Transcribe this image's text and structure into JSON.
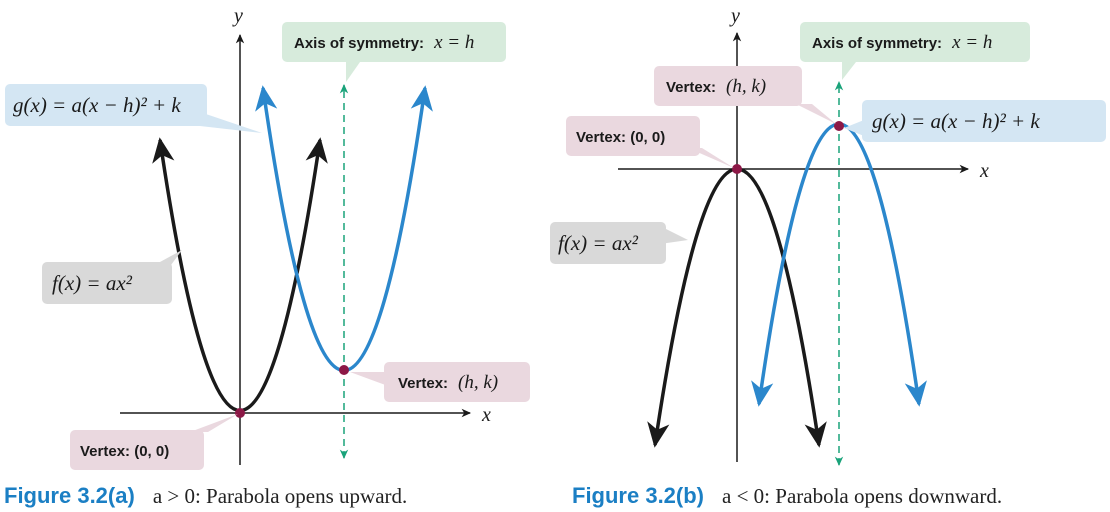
{
  "colors": {
    "blue_curve": "#2b87cc",
    "black_curve": "#1a1a1a",
    "axis_sym": "#1aa37a",
    "vertex_dot": "#8c1846",
    "label_gray": "#d9d9d9",
    "label_blue": "#d4e6f3",
    "label_green": "#d7ebdc",
    "label_pink": "#ead8df",
    "caption_blue": "#1b7fc4"
  },
  "figure_a": {
    "y_axis_label": "y",
    "x_axis_label": "x",
    "axis_of_symmetry": {
      "prefix": "Axis of symmetry:",
      "expr": "x = h"
    },
    "g_label": "g(x) = a(x − h)² + k",
    "f_label": "f(x) = ax²",
    "vertex_hk": {
      "prefix": "Vertex:",
      "expr": "(h, k)"
    },
    "vertex_00": "Vertex: (0, 0)",
    "caption": {
      "title": "Figure 3.2(a)",
      "text": "a > 0: Parabola opens upward."
    }
  },
  "figure_b": {
    "y_axis_label": "y",
    "x_axis_label": "x",
    "axis_of_symmetry": {
      "prefix": "Axis of symmetry:",
      "expr": "x = h"
    },
    "g_label": "g(x) = a(x − h)² + k",
    "f_label": "f(x) = ax²",
    "vertex_hk": {
      "prefix": "Vertex:",
      "expr": "(h, k)"
    },
    "vertex_00": "Vertex: (0, 0)",
    "caption": {
      "title": "Figure 3.2(b)",
      "text": "a < 0: Parabola opens downward."
    }
  }
}
